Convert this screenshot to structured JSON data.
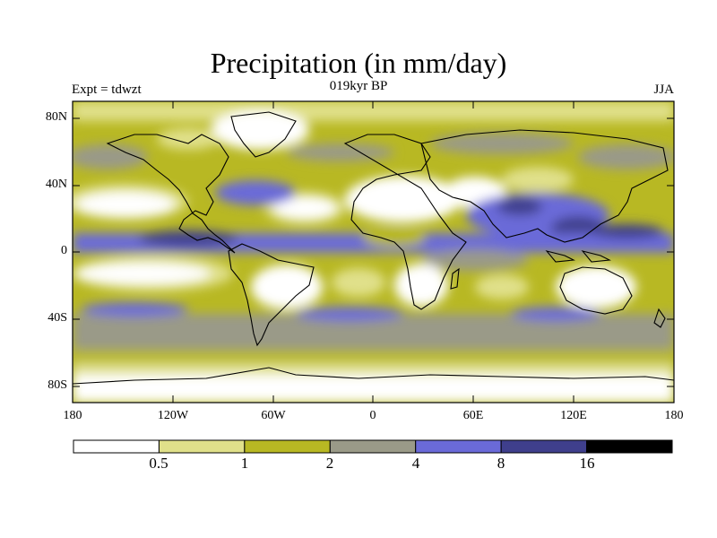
{
  "title": "Precipitation (in mm/day)",
  "experiment": "Expt = tdwzt",
  "period": "019kyr BP",
  "season": "JJA",
  "lat_labels": [
    "80N",
    "40N",
    "0",
    "40S",
    "80S"
  ],
  "lon_labels": [
    "180",
    "120W",
    "60W",
    "0",
    "60E",
    "120E",
    "180"
  ],
  "colorbar": {
    "ticks": [
      "0.5",
      "1",
      "2",
      "4",
      "8",
      "16"
    ],
    "colors": [
      "#ffffff",
      "#e0e08a",
      "#b8b823",
      "#9a9a88",
      "#6a6ad8",
      "#3f3f8c",
      "#000000"
    ]
  },
  "colors": {
    "c0": "#ffffff",
    "c1": "#e0e08a",
    "c2": "#b8b823",
    "c3": "#9a9a88",
    "c4": "#6a6ad8",
    "c5": "#3f3f8c",
    "c6": "#000000"
  }
}
